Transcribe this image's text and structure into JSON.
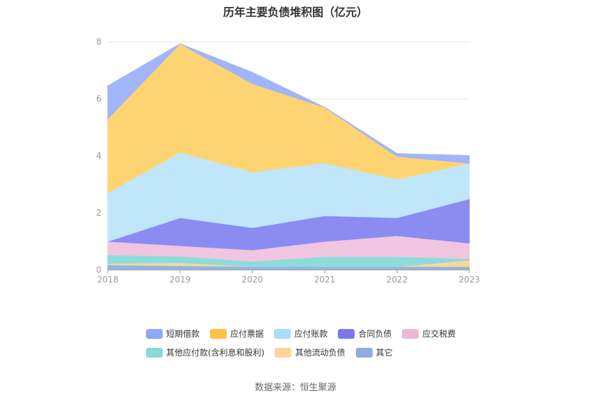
{
  "title": "历年主要负债堆积图（亿元）",
  "source": "数据来源：恒生聚源",
  "chart_data": {
    "type": "area",
    "stacked": true,
    "x": [
      "2018",
      "2019",
      "2020",
      "2021",
      "2022",
      "2023"
    ],
    "ylim": [
      0,
      8
    ],
    "yticks": [
      "0",
      "2",
      "4",
      "6",
      "8"
    ],
    "grid": true,
    "legend_position": "bottom",
    "series": [
      {
        "name": "其它",
        "color": "#93b5e0",
        "values": [
          0.18,
          0.15,
          0.12,
          0.12,
          0.12,
          0.12
        ]
      },
      {
        "name": "其他流动负债",
        "color": "#ffd79a",
        "values": [
          0.05,
          0.1,
          0.0,
          0.0,
          0.0,
          0.22
        ]
      },
      {
        "name": "其他应付款(含利息和股利)",
        "color": "#8ddcdc",
        "values": [
          0.3,
          0.23,
          0.18,
          0.35,
          0.35,
          0.05
        ]
      },
      {
        "name": "应交税费",
        "color": "#f0c5e0",
        "values": [
          0.47,
          0.37,
          0.4,
          0.53,
          0.73,
          0.55
        ]
      },
      {
        "name": "合同负债",
        "color": "#8b8bf2",
        "values": [
          0.0,
          0.98,
          0.78,
          0.9,
          0.63,
          1.55
        ]
      },
      {
        "name": "应付账款",
        "color": "#bfe6fb",
        "values": [
          1.7,
          2.3,
          1.95,
          1.85,
          1.35,
          1.25
        ]
      },
      {
        "name": "应付票据",
        "color": "#fed473",
        "values": [
          2.6,
          3.8,
          3.1,
          1.95,
          0.8,
          0.0
        ]
      },
      {
        "name": "短期借款",
        "color": "#a1b5fa",
        "values": [
          1.15,
          0.0,
          0.4,
          0.0,
          0.1,
          0.27
        ]
      }
    ]
  },
  "legend": [
    {
      "label": "短期借款",
      "color": "#8ea7f6"
    },
    {
      "label": "应付票据",
      "color": "#fcc242"
    },
    {
      "label": "应付账款",
      "color": "#a9ddf8"
    },
    {
      "label": "合同负债",
      "color": "#7a78f0"
    },
    {
      "label": "应交税费",
      "color": "#eeb6dc"
    },
    {
      "label": "其他应付款(含利息和股利)",
      "color": "#8ad8d8"
    },
    {
      "label": "其他流动负债",
      "color": "#ffd49a"
    },
    {
      "label": "其它",
      "color": "#8fadda"
    }
  ]
}
